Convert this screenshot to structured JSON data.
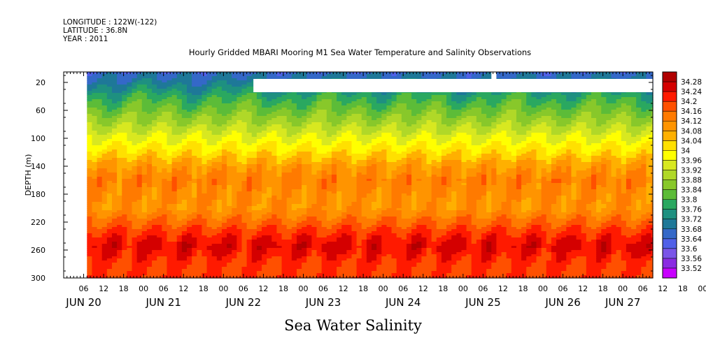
{
  "meta": {
    "longitude": "LONGITUDE : 122W(-122)",
    "latitude": "LATITUDE : 36.8N",
    "year": "YEAR : 2011"
  },
  "title": "Hourly Gridded MBARI Mooring M1 Sea Water Temperature and Salinity Observations",
  "variable_title": "Sea Water Salinity",
  "chart_data": {
    "type": "heatmap",
    "title": "Hourly Gridded MBARI Mooring M1 Sea Water Temperature and Salinity Observations",
    "xlabel": "",
    "ylabel": "DEPTH (m)",
    "ylim": [
      300,
      5
    ],
    "y_ticks": [
      20,
      60,
      100,
      140,
      180,
      220,
      260,
      300
    ],
    "x_hour_ticks": [
      "06",
      "12",
      "18",
      "00",
      "06",
      "12",
      "18",
      "00",
      "06",
      "12",
      "18",
      "00",
      "06",
      "12",
      "18",
      "00",
      "06",
      "12",
      "18",
      "00",
      "06",
      "12",
      "18",
      "00",
      "06",
      "12",
      "18",
      "00",
      "06",
      "12",
      "18",
      "00"
    ],
    "x_day_labels": [
      "JUN 20",
      "JUN 21",
      "JUN 22",
      "JUN 23",
      "JUN 24",
      "JUN 25",
      "JUN 26",
      "JUN 27"
    ],
    "x_range_hours": [
      0,
      177
    ],
    "data_start_hour": 7,
    "gap": {
      "start_hour": 57,
      "end_hour": 177,
      "depth_min": 15,
      "depth_max": 34
    },
    "gap2": {
      "start_hour": 128.5,
      "end_hour": 130,
      "depth_min": 5,
      "depth_max": 15
    },
    "colorbar_levels": [
      33.52,
      33.56,
      33.6,
      33.64,
      33.68,
      33.72,
      33.76,
      33.8,
      33.84,
      33.88,
      33.92,
      33.96,
      34,
      34.04,
      34.08,
      34.12,
      34.16,
      34.2,
      34.24,
      34.28
    ],
    "colorbar_colors": [
      "#c800ff",
      "#8a2be2",
      "#7a55e8",
      "#5060e8",
      "#3468c8",
      "#1e7898",
      "#1e9080",
      "#2aa860",
      "#5cbc38",
      "#88c82a",
      "#b0d828",
      "#d8e820",
      "#ffff00",
      "#ffe000",
      "#ffb000",
      "#ff9400",
      "#ff7a00",
      "#ff5000",
      "#ff1a00",
      "#d40000",
      "#b00000"
    ],
    "salinity_profile": [
      {
        "depth": 5,
        "value": 33.66
      },
      {
        "depth": 20,
        "value": 33.7
      },
      {
        "depth": 40,
        "value": 33.78
      },
      {
        "depth": 60,
        "value": 33.84
      },
      {
        "depth": 80,
        "value": 33.9
      },
      {
        "depth": 100,
        "value": 33.96
      },
      {
        "depth": 120,
        "value": 34.02
      },
      {
        "depth": 140,
        "value": 34.09
      },
      {
        "depth": 160,
        "value": 34.13
      },
      {
        "depth": 180,
        "value": 34.11
      },
      {
        "depth": 200,
        "value": 34.1
      },
      {
        "depth": 220,
        "value": 34.16
      },
      {
        "depth": 240,
        "value": 34.22
      },
      {
        "depth": 255,
        "value": 34.25
      },
      {
        "depth": 270,
        "value": 34.22
      },
      {
        "depth": 290,
        "value": 34.19
      },
      {
        "depth": 300,
        "value": 34.2
      }
    ]
  }
}
